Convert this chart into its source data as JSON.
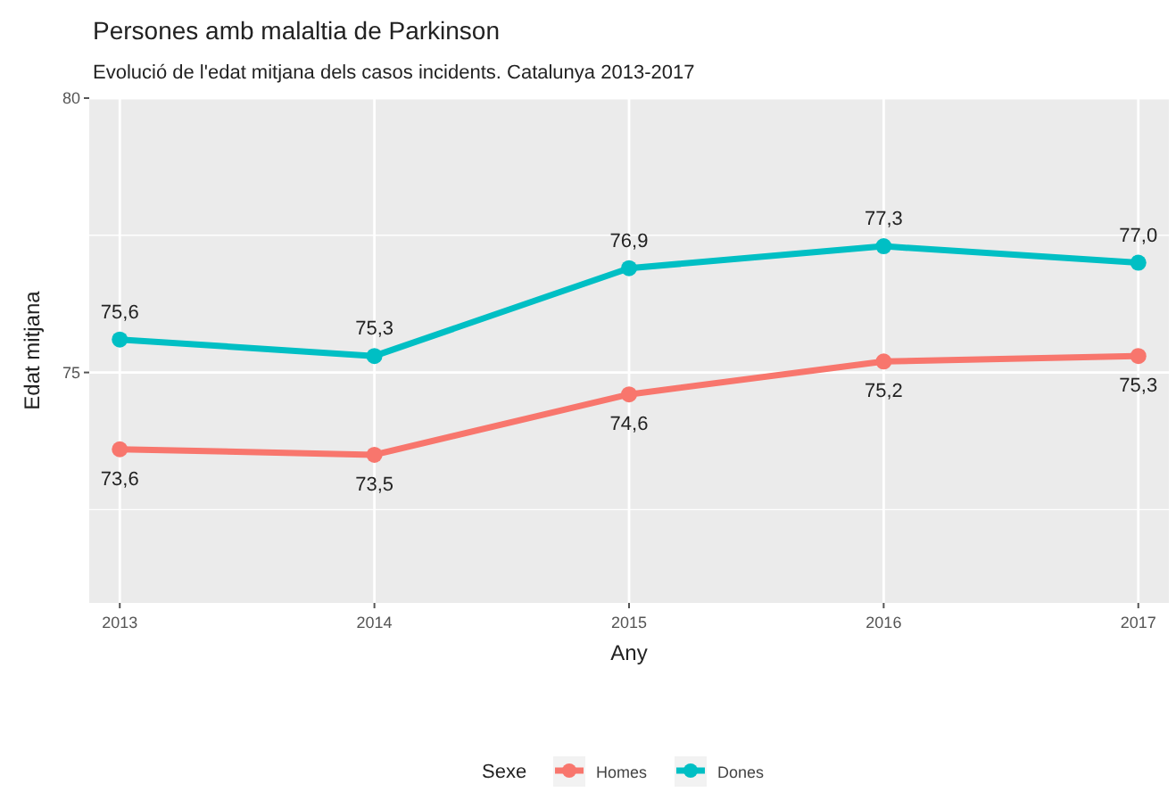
{
  "chart_data": {
    "type": "line",
    "title": "Persones amb malaltia de Parkinson",
    "subtitle": "Evolució de l'edat mitjana dels casos incidents. Catalunya 2013-2017",
    "xlabel": "Any",
    "ylabel": "Edat mitjana",
    "legend_title": "Sexe",
    "x": [
      2013,
      2014,
      2015,
      2016,
      2017
    ],
    "series": [
      {
        "name": "Homes",
        "color": "#f8766d",
        "values": [
          73.6,
          73.5,
          74.6,
          75.2,
          75.3
        ],
        "value_labels": [
          "73,6",
          "73,5",
          "74,6",
          "75,2",
          "75,3"
        ]
      },
      {
        "name": "Dones",
        "color": "#00bfc4",
        "values": [
          75.6,
          75.3,
          76.9,
          77.3,
          77.0
        ],
        "value_labels": [
          "75,6",
          "75,3",
          "76,9",
          "77,3",
          "77,0"
        ]
      }
    ],
    "xlim": [
      2012.88,
      2017.12
    ],
    "xticks": [
      2013,
      2014,
      2015,
      2016,
      2017
    ],
    "ylim": [
      70.8,
      80
    ],
    "yticks": [
      {
        "value": 72.5,
        "label": null
      },
      75,
      {
        "value": 77.5,
        "label": null
      },
      80
    ],
    "grid": true,
    "legend": "bottom",
    "marker": "circle",
    "line_style": "solid"
  }
}
